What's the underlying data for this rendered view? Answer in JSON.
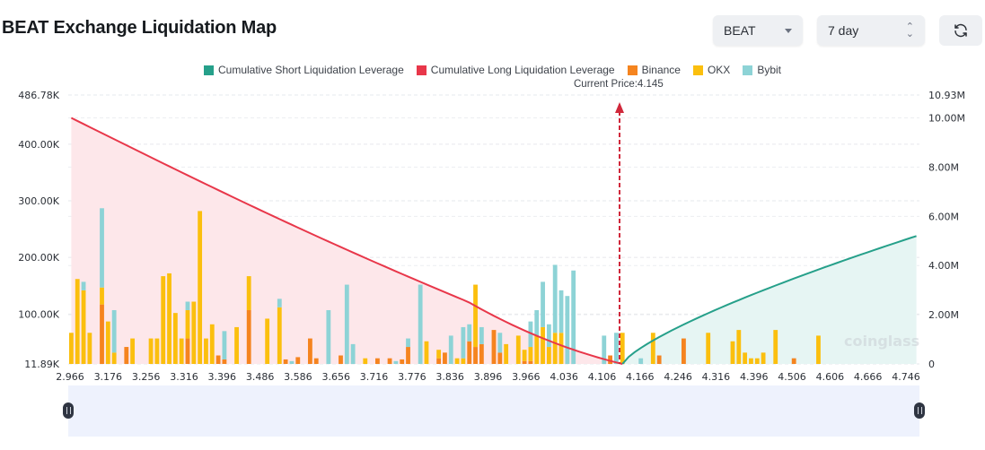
{
  "header": {
    "title": "BEAT Exchange Liquidation Map",
    "coin_select": {
      "value": "BEAT",
      "icon": "chevron-down-icon"
    },
    "range_select": {
      "value": "7 day",
      "icon": "updown-icon"
    },
    "refresh_icon": "refresh-icon"
  },
  "watermark": "coinglass",
  "chart_data": {
    "type": "bar",
    "title": "BEAT Exchange Liquidation Map",
    "current_price_label": "Current Price:4.145",
    "current_price": 4.145,
    "legend": [
      {
        "name": "Cumulative Short Liquidation Leverage",
        "color": "#26a08a"
      },
      {
        "name": "Cumulative Long Liquidation Leverage",
        "color": "#e8374a"
      },
      {
        "name": "Binance",
        "color": "#f5841f"
      },
      {
        "name": "OKX",
        "color": "#fbbf0e"
      },
      {
        "name": "Bybit",
        "color": "#8dd3d6"
      }
    ],
    "legend_position": "top-center",
    "x_tick_labels": [
      "2.966",
      "3.176",
      "3.256",
      "3.316",
      "3.396",
      "3.486",
      "3.586",
      "3.656",
      "3.716",
      "3.776",
      "3.836",
      "3.896",
      "3.966",
      "4.036",
      "4.106",
      "4.166",
      "4.246",
      "4.316",
      "4.396",
      "4.506",
      "4.606",
      "4.666",
      "4.746"
    ],
    "y_left": {
      "label": "",
      "ticks": [
        "11.89K",
        "100.00K",
        "200.00K",
        "300.00K",
        "400.00K",
        "486.78K"
      ],
      "min": 11890,
      "max": 486780
    },
    "y_right": {
      "label": "",
      "ticks": [
        "0",
        "2.00M",
        "4.00M",
        "6.00M",
        "8.00M",
        "10.00M",
        "10.93M"
      ],
      "min": 0,
      "max": 10930000
    },
    "grid": true,
    "x_range": [
      2.966,
      4.76
    ],
    "bars": {
      "binance": [
        0,
        0,
        0,
        0,
        0,
        105000,
        0,
        0,
        0,
        30000,
        0,
        0,
        0,
        0,
        0,
        0,
        0,
        0,
        0,
        45000,
        0,
        0,
        0,
        0,
        15000,
        8000,
        0,
        0,
        0,
        95000,
        0,
        0,
        0,
        0,
        0,
        8000,
        0,
        12000,
        0,
        45000,
        10000,
        0,
        0,
        0,
        15000,
        0,
        0,
        0,
        0,
        0,
        10000,
        0,
        10000,
        0,
        8000,
        30000,
        0,
        0,
        0,
        0,
        10000,
        20000,
        0,
        0,
        0,
        40000,
        30000,
        35000,
        0,
        60000,
        20000,
        0,
        0,
        0,
        5000,
        5000,
        0,
        0,
        0,
        0,
        0,
        0,
        0,
        0,
        0,
        0,
        0,
        0,
        15000,
        0,
        0,
        0,
        0,
        0,
        0,
        0,
        15000,
        0,
        0,
        0,
        45000,
        0,
        0,
        0,
        0,
        0,
        0,
        0,
        0,
        0,
        0,
        0,
        0,
        0,
        0,
        0,
        0,
        0,
        10000,
        0,
        0,
        0,
        0,
        0,
        0,
        0,
        0,
        0,
        0,
        0,
        0,
        0,
        0,
        0,
        0,
        0,
        0,
        0,
        0
      ],
      "okx": [
        55000,
        150000,
        130000,
        55000,
        0,
        30000,
        75000,
        20000,
        0,
        0,
        45000,
        0,
        0,
        45000,
        45000,
        155000,
        160000,
        90000,
        45000,
        50000,
        110000,
        270000,
        45000,
        70000,
        0,
        0,
        0,
        65000,
        0,
        60000,
        0,
        0,
        80000,
        0,
        100000,
        0,
        0,
        0,
        0,
        0,
        0,
        0,
        0,
        0,
        0,
        0,
        0,
        0,
        10000,
        0,
        0,
        0,
        0,
        0,
        0,
        0,
        0,
        0,
        40000,
        0,
        15000,
        0,
        0,
        10000,
        10000,
        0,
        110000,
        0,
        0,
        0,
        0,
        35000,
        0,
        50000,
        20000,
        25000,
        50000,
        65000,
        30000,
        55000,
        55000,
        0,
        0,
        0,
        0,
        0,
        0,
        0,
        0,
        0,
        55000,
        0,
        0,
        0,
        0,
        55000,
        0,
        0,
        0,
        0,
        0,
        0,
        0,
        0,
        55000,
        0,
        0,
        0,
        40000,
        60000,
        20000,
        10000,
        10000,
        20000,
        0,
        60000,
        0,
        0,
        0,
        0,
        0,
        0,
        50000,
        0,
        0,
        0,
        0,
        0,
        0,
        0,
        0,
        0,
        0,
        0,
        0,
        0,
        0,
        0,
        0
      ],
      "bybit": [
        0,
        0,
        15000,
        0,
        0,
        140000,
        0,
        75000,
        0,
        0,
        0,
        0,
        0,
        0,
        0,
        0,
        0,
        0,
        0,
        15000,
        0,
        0,
        0,
        0,
        0,
        50000,
        0,
        0,
        0,
        0,
        0,
        0,
        0,
        0,
        15000,
        0,
        5000,
        0,
        0,
        0,
        0,
        0,
        95000,
        0,
        0,
        140000,
        35000,
        0,
        0,
        0,
        0,
        0,
        0,
        5000,
        0,
        15000,
        0,
        140000,
        0,
        0,
        0,
        0,
        50000,
        0,
        55000,
        30000,
        0,
        30000,
        0,
        0,
        35000,
        0,
        0,
        0,
        0,
        45000,
        45000,
        80000,
        40000,
        120000,
        75000,
        120000,
        165000,
        0,
        0,
        0,
        0,
        50000,
        0,
        55000,
        0,
        0,
        0,
        10000,
        0,
        0,
        0,
        0,
        0,
        0,
        0,
        0,
        0,
        0,
        0,
        0,
        0,
        0,
        0,
        0,
        0,
        0,
        0,
        0,
        0,
        0,
        0,
        0,
        0,
        0,
        0,
        0,
        0,
        0,
        0,
        0,
        0,
        0,
        0,
        0,
        0,
        0,
        0,
        0,
        0,
        0,
        0,
        0,
        0
      ]
    },
    "note": "bar values approximate (read from pixel heights; stacked Binance/OKX/Bybit in left-axis units)"
  }
}
